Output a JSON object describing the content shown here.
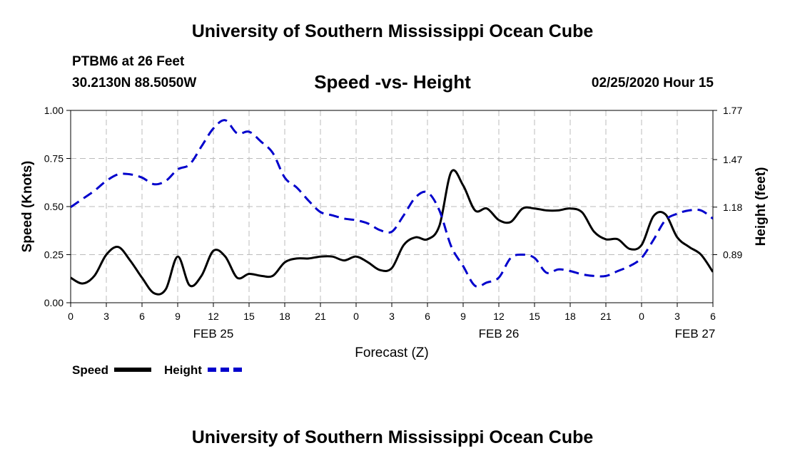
{
  "header": {
    "title": "University of Southern Mississippi Ocean Cube",
    "station": "PTBM6 at 26 Feet",
    "coords": "30.2130N 88.5050W",
    "date": "02/25/2020 Hour 15",
    "footer_title": "University of Southern Mississippi Ocean Cube"
  },
  "chart_data": {
    "type": "line",
    "title": "Speed -vs- Height",
    "xlabel": "Forecast (Z)",
    "ylabel_left": "Speed (Knots)",
    "ylabel_right": "Height (feet)",
    "x_range": [
      0,
      54
    ],
    "x_tick_values": [
      0,
      3,
      6,
      9,
      12,
      15,
      18,
      21,
      24,
      27,
      30,
      33,
      36,
      39,
      42,
      45,
      48,
      51,
      54
    ],
    "x_tick_labels": [
      "0",
      "3",
      "6",
      "9",
      "12",
      "15",
      "18",
      "21",
      "0",
      "3",
      "6",
      "9",
      "12",
      "15",
      "18",
      "21",
      "0",
      "3",
      "6"
    ],
    "date_labels": [
      {
        "x": 12,
        "label": "FEB 25"
      },
      {
        "x": 36,
        "label": "FEB 26"
      },
      {
        "x": 52.5,
        "label": "FEB 27"
      }
    ],
    "ylim_left": [
      0,
      1.0
    ],
    "yticks_left": [
      "0.00",
      "0.25",
      "0.50",
      "0.75",
      "1.00"
    ],
    "yticks_right": [
      "0.89",
      "1.18",
      "1.47",
      "1.77"
    ],
    "yticks_right_values": [
      0.25,
      0.5,
      0.75,
      1.0
    ],
    "grid": true,
    "series": [
      {
        "name": "Speed",
        "color": "#000000",
        "style": "solid",
        "axis": "left",
        "x": [
          0,
          1,
          2,
          3,
          4,
          5,
          6,
          7,
          8,
          9,
          10,
          11,
          12,
          13,
          14,
          15,
          16,
          17,
          18,
          19,
          20,
          21,
          22,
          23,
          24,
          25,
          26,
          27,
          28,
          29,
          30,
          31,
          32,
          33,
          34,
          35,
          36,
          37,
          38,
          39,
          40,
          41,
          42,
          43,
          44,
          45,
          46,
          47,
          48,
          49,
          50,
          51,
          52,
          53,
          54
        ],
        "values": [
          0.13,
          0.1,
          0.14,
          0.25,
          0.29,
          0.22,
          0.13,
          0.05,
          0.07,
          0.24,
          0.09,
          0.14,
          0.27,
          0.24,
          0.13,
          0.15,
          0.14,
          0.14,
          0.21,
          0.23,
          0.23,
          0.24,
          0.24,
          0.22,
          0.24,
          0.21,
          0.17,
          0.18,
          0.3,
          0.34,
          0.33,
          0.4,
          0.68,
          0.61,
          0.48,
          0.49,
          0.43,
          0.42,
          0.49,
          0.49,
          0.48,
          0.48,
          0.49,
          0.47,
          0.37,
          0.33,
          0.33,
          0.28,
          0.3,
          0.45,
          0.46,
          0.34,
          0.29,
          0.25,
          0.16
        ]
      },
      {
        "name": "Height",
        "color": "#0000cc",
        "style": "dashed",
        "axis": "right",
        "x": [
          0,
          1,
          2,
          3,
          4,
          5,
          6,
          7,
          8,
          9,
          10,
          11,
          12,
          13,
          14,
          15,
          16,
          17,
          18,
          19,
          20,
          21,
          22,
          23,
          24,
          25,
          26,
          27,
          28,
          29,
          30,
          31,
          32,
          33,
          34,
          35,
          36,
          37,
          38,
          39,
          40,
          41,
          42,
          43,
          44,
          45,
          46,
          47,
          48,
          49,
          50,
          51,
          52,
          53,
          54
        ],
        "values": [
          1.18,
          1.23,
          1.28,
          1.34,
          1.38,
          1.38,
          1.36,
          1.32,
          1.34,
          1.41,
          1.44,
          1.55,
          1.66,
          1.71,
          1.63,
          1.64,
          1.58,
          1.51,
          1.36,
          1.3,
          1.22,
          1.15,
          1.13,
          1.11,
          1.1,
          1.08,
          1.04,
          1.03,
          1.13,
          1.24,
          1.27,
          1.16,
          0.94,
          0.82,
          0.7,
          0.72,
          0.75,
          0.87,
          0.89,
          0.87,
          0.78,
          0.8,
          0.79,
          0.77,
          0.76,
          0.76,
          0.79,
          0.82,
          0.87,
          0.98,
          1.1,
          1.14,
          1.16,
          1.16,
          1.11
        ]
      }
    ],
    "legend": {
      "position": "bottom-left",
      "items": [
        "Speed",
        "Height"
      ]
    }
  }
}
